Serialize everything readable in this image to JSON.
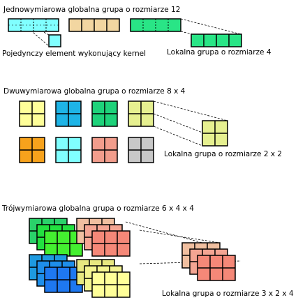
{
  "section_1d": {
    "title": "Jednowymiarowa globalna grupa o rozmiarze 12",
    "element_label": "Pojedynczy element wykonujący kernel",
    "local_label": "Lokalna grupa o rozmiarze 4",
    "group_colors": [
      "#80ffff",
      "#f2d6a1",
      "#29e586"
    ]
  },
  "section_2d": {
    "title": "Dwuwymiarowa globalna grupa o rozmiarze 8 x 4",
    "local_label": "Lokalna grupa o rozmiarze 2 x 2",
    "group_colors_row1": [
      "#ffff99",
      "#1eb4e6",
      "#1ed27a",
      "#e6f090"
    ],
    "group_colors_row2": [
      "#f7a21c",
      "#80ffff",
      "#f29d8c",
      "#c8c8c8"
    ],
    "local_color": "#e6f090"
  },
  "section_3d": {
    "title": "Trójwymiarowa globalna grupa o rozmiarze 6 x 4 x 4",
    "local_label": "Lokalna grupa o rozmiarze 3 x 2 x 4",
    "cube_colors": {
      "top_left": [
        "#2ad26a",
        "#22e040",
        "#44f030"
      ],
      "top_right": [
        "#f0bfa0",
        "#f4a593",
        "#f58878"
      ],
      "bottom_left": [
        "#1e9ae0",
        "#1e8eea",
        "#1e78f0"
      ],
      "bottom_right": [
        "#e8e880",
        "#f5f590",
        "#ffff99"
      ],
      "local": [
        "#f0bfa0",
        "#f4a593",
        "#f58878"
      ]
    }
  }
}
